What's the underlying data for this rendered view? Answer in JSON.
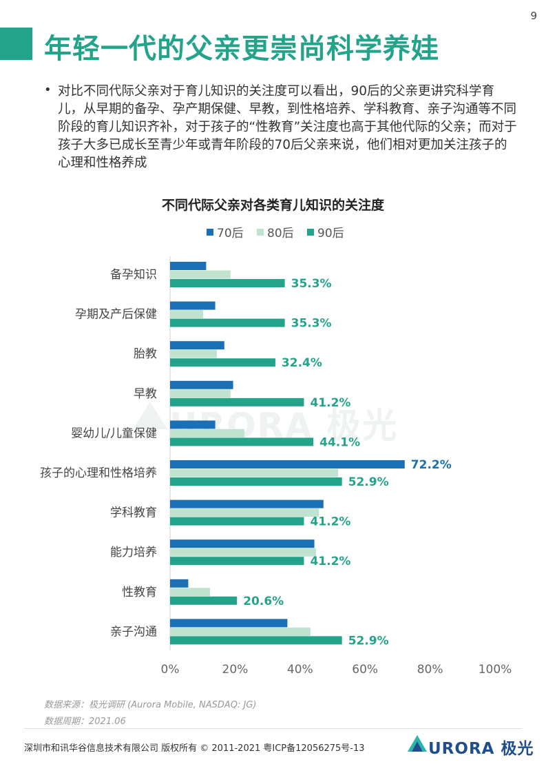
{
  "page_number": "9",
  "title": "年轻一代的父亲更崇尚科学养娃",
  "bullet": "对比不同代际父亲对于育儿知识的关注度可以看出，90后的父亲更讲究科学育儿，从早期的备孕、孕产期保健、早教，到性格培养、学科教育、亲子沟通等不同阶段的育儿知识齐补，对于孩子的“性教育”关注度也高于其他代际的父亲；而对于孩子大多已成长至青少年或青年阶段的70后父亲来说，他们相对更加关注孩子的心理和性格养成",
  "watermark": "URORA 极光",
  "chart_data": {
    "type": "bar",
    "orientation": "horizontal",
    "title": "不同代际父亲对各类育儿知识的关注度",
    "categories": [
      "备孕知识",
      "孕期及产后保健",
      "胎教",
      "早教",
      "婴幼儿/儿童保健",
      "孩子的心理和性格培养",
      "学科教育",
      "能力培养",
      "性教育",
      "亲子沟通"
    ],
    "series": [
      {
        "name": "70后",
        "color": "#1a6fb5",
        "values": [
          11.1,
          13.9,
          16.7,
          19.4,
          13.9,
          72.2,
          47.2,
          44.4,
          5.6,
          36.1
        ],
        "show_labels": false
      },
      {
        "name": "80后",
        "color": "#bfe3cf",
        "values": [
          18.6,
          10.2,
          14.4,
          18.6,
          22.9,
          51.7,
          45.8,
          44.9,
          12.3,
          43.2
        ],
        "show_labels": false
      },
      {
        "name": "90后",
        "color": "#22a38a",
        "values": [
          35.3,
          35.3,
          32.4,
          41.2,
          44.1,
          52.9,
          41.2,
          41.2,
          20.6,
          52.9
        ],
        "show_labels": true
      }
    ],
    "extra_labels": [
      {
        "series": "70后",
        "category": "孩子的心理和性格培养",
        "label": "72.2%"
      }
    ],
    "value_labels_90": [
      "35.3%",
      "35.3%",
      "32.4%",
      "41.2%",
      "44.1%",
      "52.9%",
      "41.2%",
      "41.2%",
      "20.6%",
      "52.9%"
    ],
    "xlim": [
      0,
      100
    ],
    "xticks": [
      "0%",
      "20%",
      "40%",
      "60%",
      "80%",
      "100%"
    ],
    "legend_position": "top",
    "grid": false
  },
  "source": "数据来源：极光调研 (Aurora Mobile, NASDAQ: JG)",
  "period": "数据周期：2021.06",
  "footer": "深圳市和讯华谷信息技术有限公司 版权所有 © 2011-2021 粤ICP备12056275号-13",
  "footer_logo": "URORA 极光"
}
